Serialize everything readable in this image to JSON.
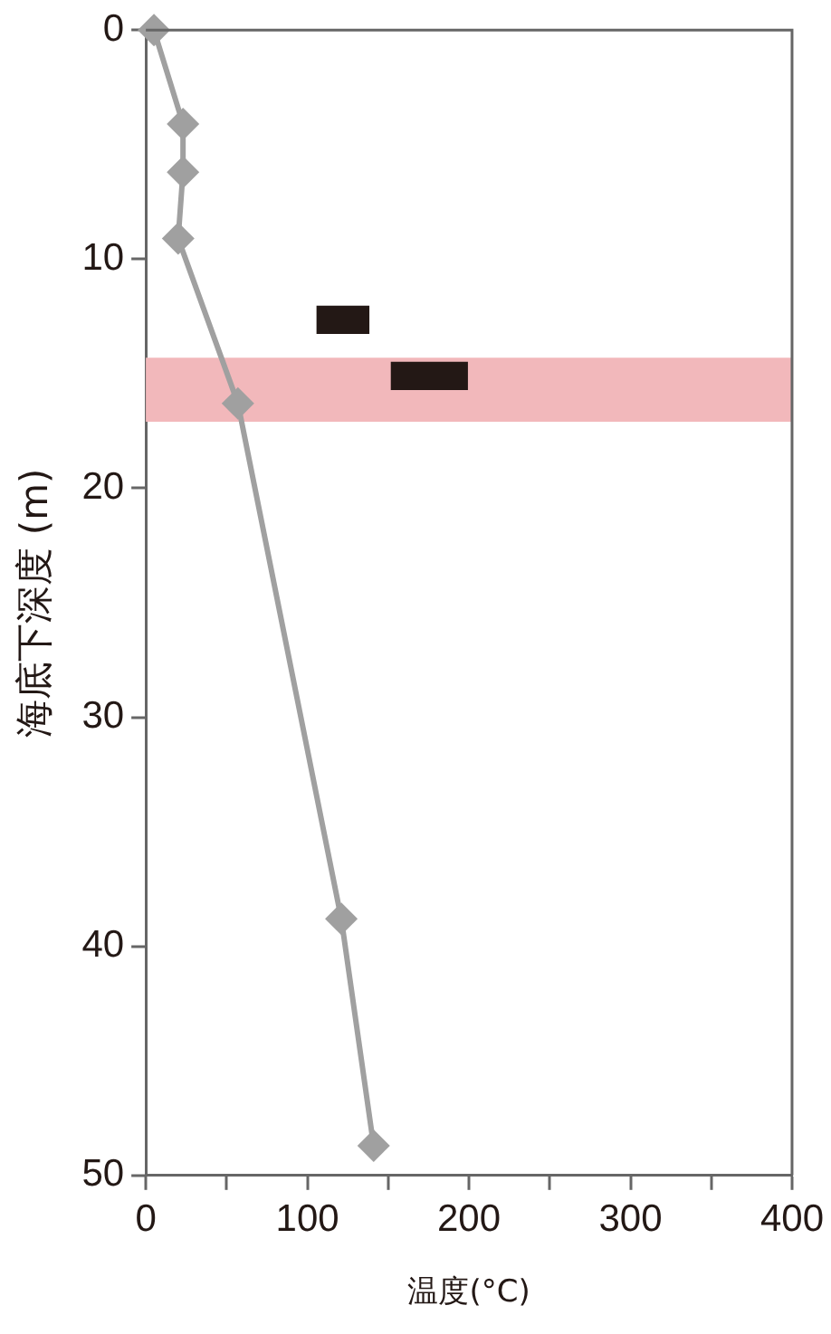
{
  "chart_data": {
    "type": "line",
    "xlabel": "温度(°C)",
    "ylabel": "海底下深度 (m)",
    "orientation": "horizontal",
    "series": [
      {
        "color": "#a0a0a0",
        "x": [
          0,
          4.1,
          6.2,
          9.1,
          16.3,
          38.8,
          48.7
        ],
        "values": [
          5,
          23,
          23,
          20,
          57,
          121,
          141
        ],
        "marker": "diamond"
      },
      {
        "type": "bar",
        "color": "#231815",
        "x": [
          12.65,
          15.1
        ],
        "base": [
          106,
          152
        ],
        "values": [
          32,
          47
        ]
      }
    ],
    "xlim": [
      0,
      400
    ],
    "xticks": [
      0,
      {
        "value": 50,
        "label": null
      },
      100,
      {
        "value": 150,
        "label": null
      },
      200,
      {
        "value": 250,
        "label": null
      },
      300,
      {
        "value": 350,
        "label": null
      },
      400
    ],
    "ylim": [
      50,
      0
    ],
    "yticks": [
      0,
      10,
      20,
      30,
      40,
      50
    ],
    "bands": [
      {
        "axis": "y",
        "from": 14.3,
        "to": 17.1,
        "color": "#f2b8bb"
      }
    ],
    "grid": false,
    "legend": false
  }
}
